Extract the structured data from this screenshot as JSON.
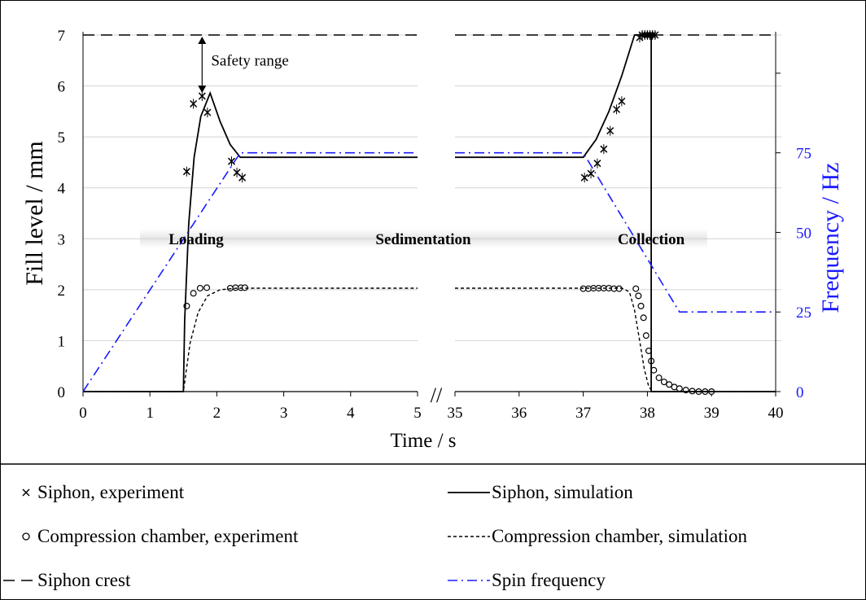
{
  "chart_data": {
    "type": "line",
    "ylabel": "Fill level / mm",
    "y2label": "Frequency / Hz",
    "xlabel": "Time / s",
    "ylim": [
      0,
      7
    ],
    "y2lim": [
      0,
      112
    ],
    "y_ticks": [
      0,
      1,
      2,
      3,
      4,
      5,
      6,
      7
    ],
    "y2_ticks": [
      0,
      25,
      50,
      75
    ],
    "x_segments": [
      {
        "range": [
          0,
          5
        ],
        "ticks": [
          0,
          1,
          2,
          3,
          4,
          5
        ]
      },
      {
        "range": [
          35,
          40
        ],
        "ticks": [
          35,
          36,
          37,
          38,
          39,
          40
        ]
      }
    ],
    "axis_break": "//",
    "grid": true,
    "phases": [
      "Loading",
      "Sedimentation",
      "Collection"
    ],
    "annotation": "Safety range",
    "series": [
      {
        "name": "Siphon, experiment",
        "kind": "scatter",
        "marker": "x",
        "points": [
          [
            1.55,
            4.32
          ],
          [
            1.65,
            5.65
          ],
          [
            1.78,
            5.8
          ],
          [
            1.86,
            5.48
          ],
          [
            2.22,
            4.52
          ],
          [
            2.3,
            4.3
          ],
          [
            2.38,
            4.2
          ],
          [
            37.02,
            4.2
          ],
          [
            37.12,
            4.28
          ],
          [
            37.22,
            4.48
          ],
          [
            37.32,
            4.76
          ],
          [
            37.42,
            5.12
          ],
          [
            37.52,
            5.54
          ],
          [
            37.6,
            5.7
          ],
          [
            37.88,
            6.95
          ],
          [
            37.92,
            7.0
          ],
          [
            37.96,
            7.0
          ],
          [
            38.0,
            7.0
          ],
          [
            38.04,
            7.0
          ],
          [
            38.08,
            7.0
          ],
          [
            38.12,
            7.0
          ]
        ]
      },
      {
        "name": "Compression chamber, experiment",
        "kind": "scatter",
        "marker": "o",
        "points": [
          [
            1.55,
            1.68
          ],
          [
            1.65,
            1.93
          ],
          [
            1.75,
            2.03
          ],
          [
            1.85,
            2.04
          ],
          [
            2.2,
            2.03
          ],
          [
            2.28,
            2.04
          ],
          [
            2.36,
            2.04
          ],
          [
            2.42,
            2.04
          ],
          [
            37.0,
            2.02
          ],
          [
            37.08,
            2.02
          ],
          [
            37.16,
            2.03
          ],
          [
            37.24,
            2.03
          ],
          [
            37.32,
            2.03
          ],
          [
            37.4,
            2.03
          ],
          [
            37.48,
            2.02
          ],
          [
            37.56,
            2.02
          ],
          [
            37.82,
            2.02
          ],
          [
            37.86,
            1.88
          ],
          [
            37.9,
            1.68
          ],
          [
            37.94,
            1.45
          ],
          [
            37.98,
            1.1
          ],
          [
            38.02,
            0.8
          ],
          [
            38.06,
            0.6
          ],
          [
            38.1,
            0.42
          ],
          [
            38.18,
            0.27
          ],
          [
            38.26,
            0.19
          ],
          [
            38.34,
            0.14
          ],
          [
            38.42,
            0.09
          ],
          [
            38.5,
            0.06
          ],
          [
            38.6,
            0.03
          ],
          [
            38.7,
            0.01
          ],
          [
            38.8,
            0.0
          ],
          [
            38.9,
            0.0
          ],
          [
            39.0,
            0.0
          ]
        ]
      },
      {
        "name": "Siphon, simulation",
        "kind": "line",
        "style": "solid",
        "points": [
          [
            0,
            0
          ],
          [
            1.5,
            0
          ],
          [
            1.52,
            1.4
          ],
          [
            1.58,
            3.3
          ],
          [
            1.66,
            4.6
          ],
          [
            1.76,
            5.4
          ],
          [
            1.9,
            5.86
          ],
          [
            2.05,
            5.3
          ],
          [
            2.2,
            4.85
          ],
          [
            2.35,
            4.6
          ],
          [
            5,
            4.6
          ],
          [
            35,
            4.6
          ],
          [
            37.0,
            4.6
          ],
          [
            37.2,
            4.95
          ],
          [
            37.4,
            5.5
          ],
          [
            37.6,
            6.2
          ],
          [
            37.8,
            7.0
          ],
          [
            38.06,
            7.0
          ],
          [
            38.06,
            0
          ],
          [
            40,
            0
          ]
        ]
      },
      {
        "name": "Compression chamber, simulation",
        "kind": "line",
        "style": "dashed",
        "points": [
          [
            0,
            0
          ],
          [
            1.5,
            0
          ],
          [
            1.6,
            0.95
          ],
          [
            1.72,
            1.55
          ],
          [
            1.86,
            1.88
          ],
          [
            2.05,
            2.0
          ],
          [
            2.3,
            2.03
          ],
          [
            5,
            2.03
          ],
          [
            35,
            2.03
          ],
          [
            37.6,
            2.03
          ],
          [
            37.72,
            1.96
          ],
          [
            37.8,
            1.6
          ],
          [
            37.88,
            1.0
          ],
          [
            37.95,
            0.45
          ],
          [
            38.02,
            0.1
          ],
          [
            38.08,
            0
          ],
          [
            40,
            0
          ]
        ]
      },
      {
        "name": "Siphon crest",
        "kind": "line",
        "style": "long-dash",
        "points": [
          [
            0,
            7
          ],
          [
            5,
            7
          ],
          [
            35,
            7
          ],
          [
            40,
            7
          ]
        ]
      },
      {
        "name": "Spin frequency",
        "kind": "line",
        "style": "dash-dot",
        "axis": "right",
        "points": [
          [
            0,
            0
          ],
          [
            2.35,
            75
          ],
          [
            5,
            75
          ],
          [
            35,
            75
          ],
          [
            37.0,
            75
          ],
          [
            38.5,
            25
          ],
          [
            40,
            25
          ]
        ]
      }
    ],
    "legend": {
      "placement": "bottom",
      "entries": [
        "Siphon, experiment",
        "Siphon, simulation",
        "Compression chamber, experiment",
        "Compression chamber, simulation",
        "Siphon crest",
        "Spin frequency"
      ]
    }
  }
}
